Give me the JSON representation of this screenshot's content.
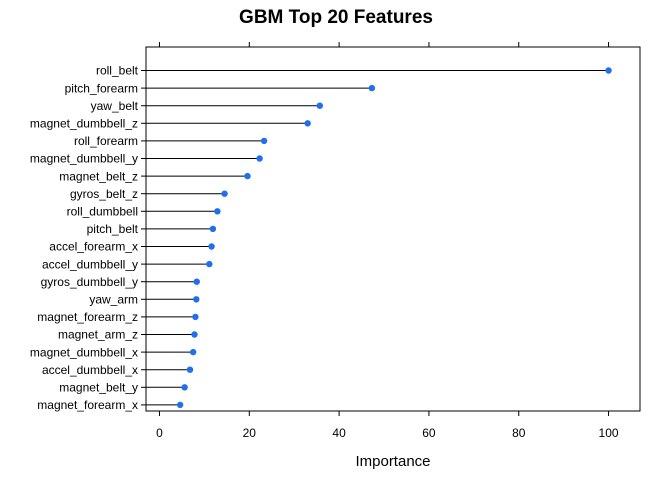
{
  "chart_data": {
    "type": "dotplot",
    "title": "GBM Top 20 Features",
    "xlabel": "Importance",
    "ylabel": "",
    "xlim": [
      -3,
      107
    ],
    "xticks": [
      0,
      20,
      40,
      60,
      80,
      100
    ],
    "grid": false,
    "categories": [
      "roll_belt",
      "pitch_forearm",
      "yaw_belt",
      "magnet_dumbbell_z",
      "roll_forearm",
      "magnet_dumbbell_y",
      "magnet_belt_z",
      "gyros_belt_z",
      "roll_dumbbell",
      "pitch_belt",
      "accel_forearm_x",
      "accel_dumbbell_y",
      "gyros_dumbbell_y",
      "yaw_arm",
      "magnet_forearm_z",
      "magnet_arm_z",
      "magnet_dumbbell_x",
      "accel_dumbbell_x",
      "magnet_belt_y",
      "magnet_forearm_x"
    ],
    "values": [
      100,
      47.3,
      35.7,
      33.0,
      23.3,
      22.3,
      19.6,
      14.5,
      12.9,
      11.9,
      11.6,
      11.1,
      8.3,
      8.2,
      8.0,
      7.8,
      7.5,
      6.8,
      5.6,
      4.6
    ],
    "colors": {
      "point": "#1f6fef",
      "line": "#000000",
      "frame": "#000000"
    }
  }
}
